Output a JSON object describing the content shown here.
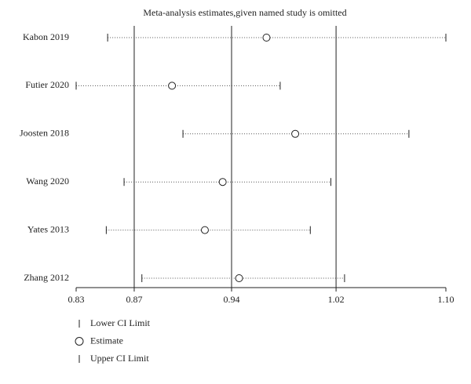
{
  "chart_data": {
    "type": "sensitivity",
    "title": "Meta-analysis estimates,given named study is omitted",
    "categories": [
      "Kabon 2019",
      "Futier 2020",
      "Joosten 2018",
      "Wang 2020",
      "Yates 2013",
      "Zhang 2012"
    ],
    "series": [
      {
        "name": "Lower CI Limit",
        "color": "#222222",
        "values": [
          0.853,
          0.83,
          0.908,
          0.865,
          0.852,
          0.878
        ]
      },
      {
        "name": "Estimate",
        "color": "#222222",
        "values": [
          0.969,
          0.9,
          0.99,
          0.937,
          0.924,
          0.949
        ]
      },
      {
        "name": "Upper CI Limit",
        "color": "#222222",
        "values": [
          1.1,
          0.979,
          1.073,
          1.016,
          1.001,
          1.026
        ]
      }
    ],
    "xlim": [
      0.83,
      1.1
    ],
    "xticks": [
      0.83,
      {
        "value": 0.8724,
        "label": "0.87"
      },
      {
        "value": 0.9435,
        "label": "0.94"
      },
      {
        "value": 1.0198,
        "label": "1.02"
      },
      {
        "value": 1.1,
        "label": "1.10"
      }
    ],
    "grid": true
  }
}
